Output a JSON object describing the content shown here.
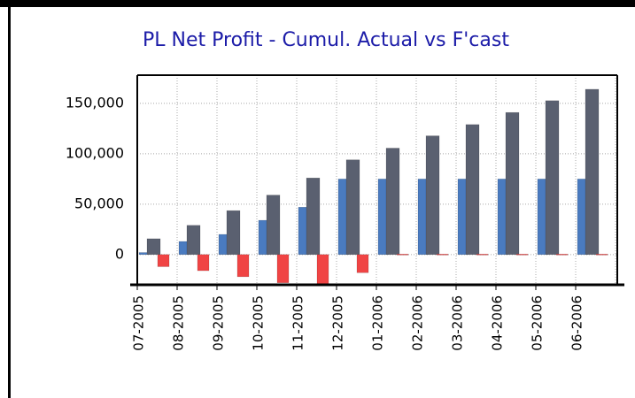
{
  "chart_data": {
    "type": "bar",
    "title": "PL Net Profit - Cumul. Actual vs F'cast",
    "categories": [
      "07-2005",
      "08-2005",
      "09-2005",
      "10-2005",
      "11-2005",
      "12-2005",
      "01-2006",
      "02-2006",
      "03-2006",
      "04-2006",
      "05-2006",
      "06-2006"
    ],
    "series": [
      {
        "color": "#4a7bc0",
        "values": [
          2000,
          13000,
          20000,
          34000,
          47000,
          75000,
          75000,
          75000,
          75000,
          75000,
          75000,
          75000
        ]
      },
      {
        "color": "#5a6070",
        "values": [
          15700,
          29000,
          43600,
          59000,
          76000,
          94000,
          105600,
          117800,
          129000,
          141000,
          152700,
          164000
        ]
      },
      {
        "color": "#f04444",
        "values": [
          -12000,
          -16000,
          -22000,
          -28000,
          -30000,
          -18000,
          0,
          0,
          0,
          0,
          0,
          0
        ]
      }
    ],
    "ylim": [
      -30000,
      178000
    ],
    "yticks": [
      {
        "value": 0,
        "label": "0"
      },
      {
        "value": 50000,
        "label": "50,000"
      },
      {
        "value": 100000,
        "label": "100,000"
      },
      {
        "value": 150000,
        "label": "150,000"
      }
    ],
    "grid": true
  }
}
